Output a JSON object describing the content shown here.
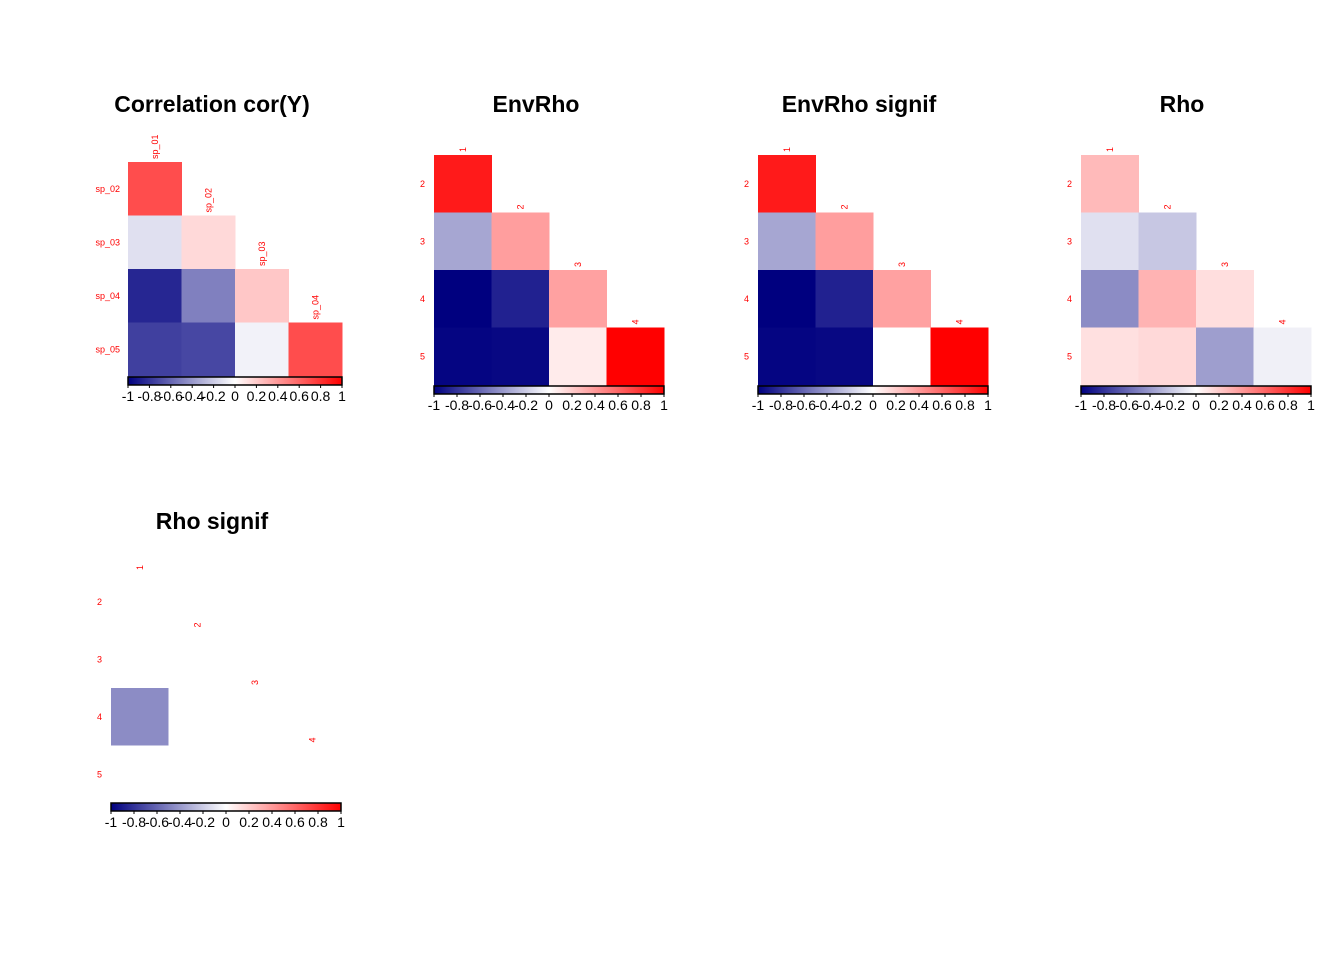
{
  "chart_data": [
    {
      "type": "heatmap",
      "title": "Correlation cor(Y)",
      "row_labels": [
        "sp_02",
        "sp_03",
        "sp_04",
        "sp_05"
      ],
      "col_labels": [
        "sp_01",
        "sp_02",
        "sp_03",
        "sp_04"
      ],
      "values": [
        [
          0.7
        ],
        [
          -0.12,
          0.15
        ],
        [
          -0.85,
          -0.5,
          0.22
        ],
        [
          -0.75,
          -0.72,
          -0.05,
          0.7
        ]
      ],
      "colorbar": {
        "min": -1,
        "max": 1,
        "ticks": [
          "-1",
          "-0.8",
          "-0.6",
          "-0.4",
          "-0.2",
          "0",
          "0.2",
          "0.4",
          "0.6",
          "0.8",
          "1"
        ]
      },
      "colors": {
        "low": "#00007f",
        "mid": "#ffffff",
        "high": "#ff0000"
      }
    },
    {
      "type": "heatmap",
      "title": "EnvRho",
      "row_labels": [
        "2",
        "3",
        "4",
        "5"
      ],
      "col_labels": [
        "1",
        "2",
        "3",
        "4"
      ],
      "values": [
        [
          0.9
        ],
        [
          -0.35,
          0.38
        ],
        [
          -1.0,
          -0.87,
          0.37
        ],
        [
          -0.98,
          -0.97,
          0.08,
          1.0
        ]
      ],
      "colorbar": {
        "min": -1,
        "max": 1,
        "ticks": [
          "-1",
          "-0.8",
          "-0.6",
          "-0.4",
          "-0.2",
          "0",
          "0.2",
          "0.4",
          "0.6",
          "0.8",
          "1"
        ]
      },
      "colors": {
        "low": "#00007f",
        "mid": "#ffffff",
        "high": "#ff0000"
      }
    },
    {
      "type": "heatmap",
      "title": "EnvRho signif",
      "row_labels": [
        "2",
        "3",
        "4",
        "5"
      ],
      "col_labels": [
        "1",
        "2",
        "3",
        "4"
      ],
      "values": [
        [
          0.9
        ],
        [
          -0.35,
          0.38
        ],
        [
          -1.0,
          -0.87,
          0.37
        ],
        [
          -0.98,
          -0.97,
          0.0,
          1.0
        ]
      ],
      "colorbar": {
        "min": -1,
        "max": 1,
        "ticks": [
          "-1",
          "-0.8",
          "-0.6",
          "-0.4",
          "-0.2",
          "0",
          "0.2",
          "0.4",
          "0.6",
          "0.8",
          "1"
        ]
      },
      "colors": {
        "low": "#00007f",
        "mid": "#ffffff",
        "high": "#ff0000"
      }
    },
    {
      "type": "heatmap",
      "title": "Rho",
      "row_labels": [
        "2",
        "3",
        "4",
        "5"
      ],
      "col_labels": [
        "1",
        "2",
        "3",
        "4"
      ],
      "values": [
        [
          0.27
        ],
        [
          -0.12,
          -0.22
        ],
        [
          -0.45,
          0.3,
          0.13
        ],
        [
          0.12,
          0.15,
          -0.38,
          -0.06
        ]
      ],
      "colorbar": {
        "min": -1,
        "max": 1,
        "ticks": [
          "-1",
          "-0.8",
          "-0.6",
          "-0.4",
          "-0.2",
          "0",
          "0.2",
          "0.4",
          "0.6",
          "0.8",
          "1"
        ]
      },
      "colors": {
        "low": "#00007f",
        "mid": "#ffffff",
        "high": "#ff0000"
      }
    },
    {
      "type": "heatmap",
      "title": "Rho signif",
      "row_labels": [
        "2",
        "3",
        "4",
        "5"
      ],
      "col_labels": [
        "1",
        "2",
        "3",
        "4"
      ],
      "values": [
        [
          0.0
        ],
        [
          0.0,
          0.0
        ],
        [
          -0.45,
          0.0,
          0.0
        ],
        [
          0.0,
          0.0,
          0.0,
          0.0
        ]
      ],
      "colorbar": {
        "min": -1,
        "max": 1,
        "ticks": [
          "-1",
          "-0.8",
          "-0.6",
          "-0.4",
          "-0.2",
          "0",
          "0.2",
          "0.4",
          "0.6",
          "0.8",
          "1"
        ]
      },
      "colors": {
        "low": "#00007f",
        "mid": "#ffffff",
        "high": "#ff0000"
      }
    }
  ]
}
